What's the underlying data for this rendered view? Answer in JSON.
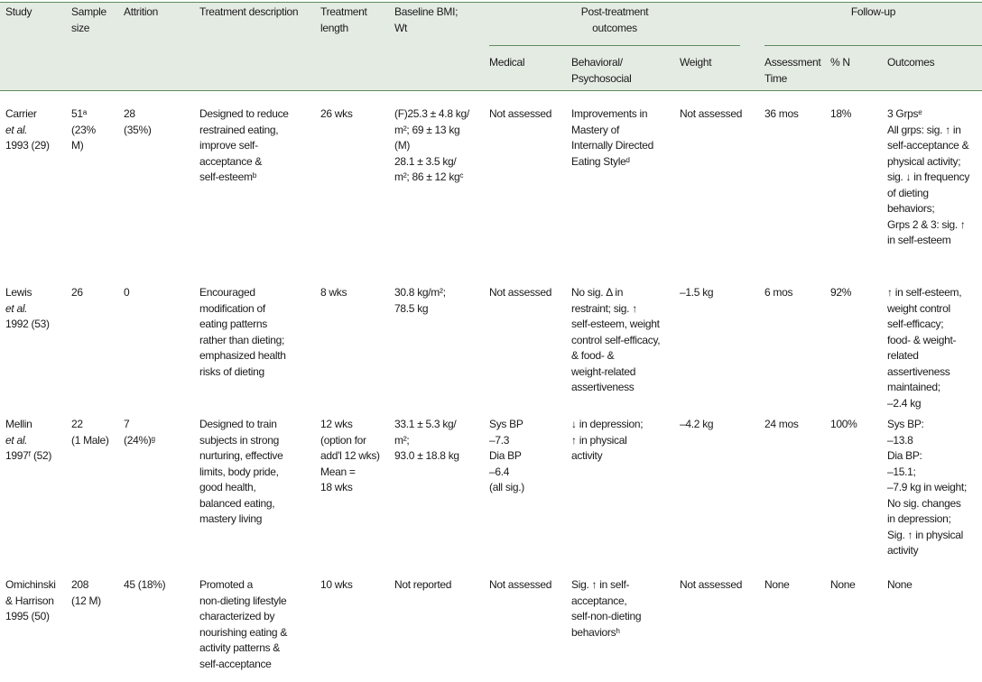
{
  "header": {
    "study": "Study",
    "sample_size": "Sample\nsize",
    "attrition": "Attrition",
    "treatment_description": "Treatment description",
    "treatment_length": "Treatment\nlength",
    "baseline": "Baseline BMI;\nWt",
    "post_treatment_group": "Post-treatment\noutcomes",
    "follow_up_group": "Follow-up",
    "medical": "Medical",
    "behavioral": "Behavioral/\nPsychosocial",
    "weight": "Weight",
    "assessment_time": "Assessment\nTime",
    "pct_n": "% N",
    "outcomes": "Outcomes"
  },
  "rows": [
    {
      "study_name": "Carrier",
      "study_etal": "et al.",
      "study_year": "1993 (29)",
      "sample_size": "51ᵃ\n(23%\nM)",
      "attrition": "28\n(35%)",
      "treatment_description": "Designed to reduce\nrestrained eating,\nimprove self-\nacceptance &\nself-esteemᵇ",
      "treatment_length": "26 wks",
      "baseline": "(F)25.3 ± 4.8 kg/\nm²; 69 ± 13 kg\n(M)\n28.1 ± 3.5 kg/\nm²; 86 ± 12 kgᶜ",
      "medical": "Not assessed",
      "behavioral": "Improvements in\nMastery of\nInternally Directed\nEating Styleᵈ",
      "weight": "Not assessed",
      "assessment_time": "36 mos",
      "pct_n": "18%",
      "outcomes": "3 Grpsᵉ\nAll grps: sig. ↑ in\nself-acceptance &\nphysical activity;\nsig. ↓ in frequency\nof dieting\nbehaviors;\nGrps 2 & 3: sig. ↑\nin self-esteem"
    },
    {
      "study_name": "Lewis",
      "study_etal": "et al.",
      "study_year": "1992 (53)",
      "sample_size": "26",
      "attrition": "0",
      "treatment_description": "Encouraged\nmodification of\neating patterns\nrather than dieting;\nemphasized health\nrisks of dieting",
      "treatment_length": "8 wks",
      "baseline": "30.8 kg/m²;\n78.5 kg",
      "medical": "Not assessed",
      "behavioral": "No sig. Δ in\nrestraint; sig. ↑\nself-esteem, weight\ncontrol self-efficacy,\n& food- &\nweight-related\nassertiveness",
      "weight": "–1.5 kg",
      "assessment_time": "6 mos",
      "pct_n": "92%",
      "outcomes": "↑ in self-esteem,\nweight control\nself-efficacy;\nfood- & weight-\nrelated\nassertiveness\nmaintained;\n–2.4 kg"
    },
    {
      "study_name": "Mellin",
      "study_etal": "et al.",
      "study_year": "1997ᶠ (52)",
      "sample_size": "22\n(1 Male)",
      "attrition": "7\n(24%)ᵍ",
      "treatment_description": "Designed to train\nsubjects in strong\nnurturing, effective\nlimits, body pride,\ngood health,\nbalanced eating,\nmastery living",
      "treatment_length": "12 wks\n(option for\nadd'l 12 wks)\nMean =\n18 wks",
      "baseline": "33.1 ± 5.3 kg/\nm²;\n93.0 ± 18.8 kg",
      "medical": "Sys BP\n–7.3\nDia BP\n–6.4\n(all sig.)",
      "behavioral": "↓ in depression;\n↑ in physical\nactivity",
      "weight": "–4.2 kg",
      "assessment_time": "24 mos",
      "pct_n": "100%",
      "outcomes": "Sys BP:\n–13.8\nDia BP:\n–15.1;\n–7.9 kg in weight;\nNo sig. changes\nin depression;\nSig. ↑ in physical\nactivity"
    },
    {
      "study_name": "Omichinski",
      "study_etal": "",
      "study_year": "& Harrison\n1995 (50)",
      "sample_size": "208\n(12 M)",
      "attrition": "45 (18%)",
      "treatment_description": "Promoted a\nnon-dieting lifestyle\ncharacterized by\nnourishing eating &\nactivity patterns &\nself-acceptance",
      "treatment_length": "10 wks",
      "baseline": "Not reported",
      "medical": "Not assessed",
      "behavioral": "Sig. ↑ in self-\nacceptance,\nself-non-dieting\nbehaviorsʰ",
      "weight": "Not assessed",
      "assessment_time": "None",
      "pct_n": "None",
      "outcomes": "None"
    }
  ],
  "colors": {
    "header_bg": "#e4ebe3",
    "rule": "#5d8c5d",
    "text": "#1a1a1a"
  }
}
